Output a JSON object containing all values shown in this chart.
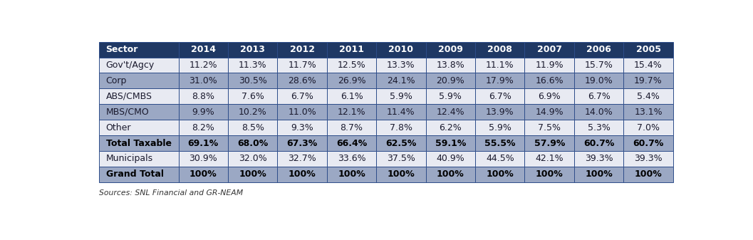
{
  "columns": [
    "Sector",
    "2014",
    "2013",
    "2012",
    "2011",
    "2010",
    "2009",
    "2008",
    "2007",
    "2006",
    "2005"
  ],
  "rows": [
    [
      "Gov't/Agcy",
      "11.2%",
      "11.3%",
      "11.7%",
      "12.5%",
      "13.3%",
      "13.8%",
      "11.1%",
      "11.9%",
      "15.7%",
      "15.4%"
    ],
    [
      "Corp",
      "31.0%",
      "30.5%",
      "28.6%",
      "26.9%",
      "24.1%",
      "20.9%",
      "17.9%",
      "16.6%",
      "19.0%",
      "19.7%"
    ],
    [
      "ABS/CMBS",
      "8.8%",
      "7.6%",
      "6.7%",
      "6.1%",
      "5.9%",
      "5.9%",
      "6.7%",
      "6.9%",
      "6.7%",
      "5.4%"
    ],
    [
      "MBS/CMO",
      "9.9%",
      "10.2%",
      "11.0%",
      "12.1%",
      "11.4%",
      "12.4%",
      "13.9%",
      "14.9%",
      "14.0%",
      "13.1%"
    ],
    [
      "Other",
      "8.2%",
      "8.5%",
      "9.3%",
      "8.7%",
      "7.8%",
      "6.2%",
      "5.9%",
      "7.5%",
      "5.3%",
      "7.0%"
    ],
    [
      "Total Taxable",
      "69.1%",
      "68.0%",
      "67.3%",
      "66.4%",
      "62.5%",
      "59.1%",
      "55.5%",
      "57.9%",
      "60.7%",
      "60.7%"
    ],
    [
      "Municipals",
      "30.9%",
      "32.0%",
      "32.7%",
      "33.6%",
      "37.5%",
      "40.9%",
      "44.5%",
      "42.1%",
      "39.3%",
      "39.3%"
    ],
    [
      "Grand Total",
      "100%",
      "100%",
      "100%",
      "100%",
      "100%",
      "100%",
      "100%",
      "100%",
      "100%",
      "100%"
    ]
  ],
  "bold_rows": [
    5,
    7
  ],
  "header_bg": "#1F3864",
  "header_fg": "#FFFFFF",
  "row_bg_light": "#E8EAF0",
  "row_bg_dark": "#8E9EC0",
  "bold_row_bg_total": "#8E9EC0",
  "bold_row_bg_grand": "#8E9EC0",
  "source_text": "Sources: SNL Financial and GR-NEAM",
  "border_color": "#2E4D8A",
  "cell_text_color": "#1A1A2E",
  "bold_text_color": "#000000",
  "col_widths_raw": [
    1.45,
    0.9,
    0.9,
    0.9,
    0.9,
    0.9,
    0.9,
    0.9,
    0.9,
    0.9,
    0.9
  ]
}
